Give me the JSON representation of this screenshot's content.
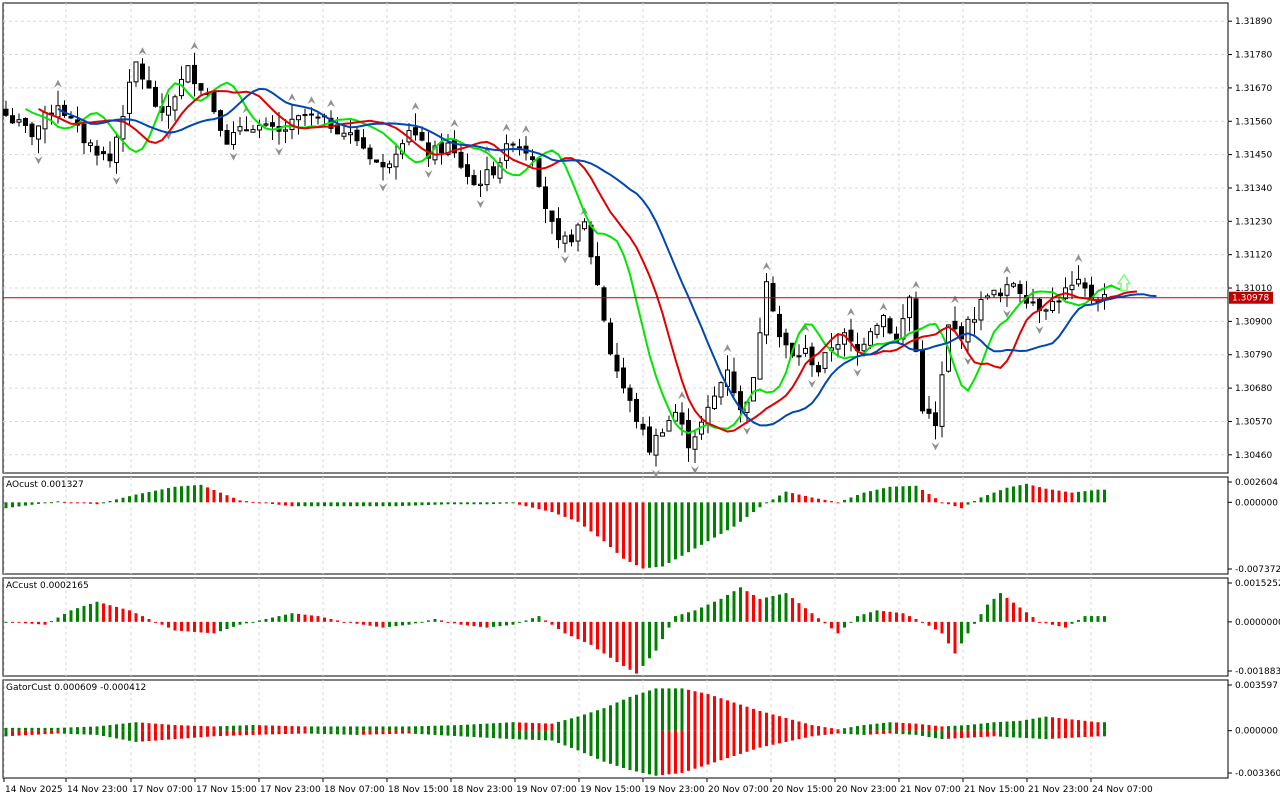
{
  "colors": {
    "bull": "#008000",
    "bear": "#ff0000",
    "candle": "#000000",
    "ma_fast": "#00e600",
    "ma_mid": "#e00000",
    "ma_slow": "#0047b3",
    "price_line": "#c00000",
    "arrow": "#7cfc7c",
    "grid": "#d8d8d8",
    "fractal": "#909090"
  },
  "chart_data": [
    {
      "type": "candlestick",
      "symbol_price_label": "1.30978",
      "ylim": [
        1.304,
        1.3195
      ],
      "y_ticks": [
        "1.31890",
        "1.31780",
        "1.31670",
        "1.31560",
        "1.31450",
        "1.31340",
        "1.31230",
        "1.31120",
        "1.31010",
        "1.30900",
        "1.30790",
        "1.30680",
        "1.30570",
        "1.30460"
      ],
      "x_ticks": [
        "14 Nov 2025",
        "14 Nov 23:00",
        "17 Nov 07:00",
        "17 Nov 15:00",
        "17 Nov 23:00",
        "18 Nov 07:00",
        "18 Nov 15:00",
        "18 Nov 23:00",
        "19 Nov 07:00",
        "19 Nov 15:00",
        "19 Nov 23:00",
        "20 Nov 07:00",
        "20 Nov 15:00",
        "20 Nov 23:00",
        "21 Nov 07:00",
        "21 Nov 15:00",
        "21 Nov 23:00",
        "24 Nov 07:00"
      ],
      "close_anchors": [
        [
          0,
          1.3158
        ],
        [
          4,
          1.3152
        ],
        [
          8,
          1.3162
        ],
        [
          12,
          1.315
        ],
        [
          16,
          1.3143
        ],
        [
          20,
          1.3175
        ],
        [
          24,
          1.3157
        ],
        [
          28,
          1.3173
        ],
        [
          31,
          1.3165
        ],
        [
          34,
          1.315
        ],
        [
          38,
          1.3155
        ],
        [
          42,
          1.3152
        ],
        [
          46,
          1.3158
        ],
        [
          50,
          1.3155
        ],
        [
          54,
          1.315
        ],
        [
          58,
          1.314
        ],
        [
          62,
          1.3154
        ],
        [
          65,
          1.3145
        ],
        [
          68,
          1.3148
        ],
        [
          72,
          1.3135
        ],
        [
          75,
          1.314
        ],
        [
          78,
          1.315
        ],
        [
          81,
          1.3145
        ],
        [
          83,
          1.3128
        ],
        [
          85,
          1.3115
        ],
        [
          87,
          1.3118
        ],
        [
          89,
          1.3122
        ],
        [
          91,
          1.3102
        ],
        [
          93,
          1.308
        ],
        [
          95,
          1.3068
        ],
        [
          97,
          1.3058
        ],
        [
          99,
          1.3048
        ],
        [
          101,
          1.3055
        ],
        [
          103,
          1.306
        ],
        [
          105,
          1.305
        ],
        [
          107,
          1.3056
        ],
        [
          109,
          1.3065
        ],
        [
          111,
          1.3075
        ],
        [
          113,
          1.306
        ],
        [
          115,
          1.307
        ],
        [
          117,
          1.3105
        ],
        [
          119,
          1.3085
        ],
        [
          121,
          1.3078
        ],
        [
          123,
          1.308
        ],
        [
          125,
          1.3074
        ],
        [
          127,
          1.3082
        ],
        [
          129,
          1.3085
        ],
        [
          131,
          1.308
        ],
        [
          133,
          1.3088
        ],
        [
          135,
          1.3092
        ],
        [
          137,
          1.3083
        ],
        [
          139,
          1.3098
        ],
        [
          141,
          1.3062
        ],
        [
          143,
          1.3055
        ],
        [
          145,
          1.3088
        ],
        [
          147,
          1.3086
        ],
        [
          149,
          1.3092
        ],
        [
          151,
          1.31
        ],
        [
          153,
          1.3098
        ],
        [
          155,
          1.3103
        ],
        [
          157,
          1.3098
        ],
        [
          159,
          1.3095
        ],
        [
          161,
          1.3096
        ],
        [
          163,
          1.31
        ],
        [
          165,
          1.3102
        ],
        [
          167,
          1.3098
        ]
      ],
      "series": [
        {
          "name": "",
          "color_key": "ma_fast"
        },
        {
          "name": "",
          "color_key": "ma_mid"
        },
        {
          "name": "",
          "color_key": "ma_slow"
        }
      ]
    },
    {
      "type": "bar",
      "label": "AOcust 0.001327",
      "ylim": [
        -0.007372,
        0.002604
      ],
      "y_ticks": [
        "0.002604",
        "0.000000",
        "-0.007372"
      ],
      "anchors": [
        [
          0,
          -0.0006
        ],
        [
          8,
          0.0001
        ],
        [
          14,
          -0.0002
        ],
        [
          20,
          0.0008
        ],
        [
          26,
          0.0016
        ],
        [
          30,
          0.0018
        ],
        [
          36,
          0.0002
        ],
        [
          44,
          -0.0004
        ],
        [
          52,
          -0.0004
        ],
        [
          60,
          -0.0004
        ],
        [
          68,
          -0.0002
        ],
        [
          74,
          -0.0002
        ],
        [
          78,
          -0.0001
        ],
        [
          84,
          -0.001
        ],
        [
          88,
          -0.002
        ],
        [
          92,
          -0.004
        ],
        [
          95,
          -0.0058
        ],
        [
          98,
          -0.0068
        ],
        [
          101,
          -0.0066
        ],
        [
          104,
          -0.0055
        ],
        [
          108,
          -0.004
        ],
        [
          112,
          -0.0025
        ],
        [
          116,
          -0.0005
        ],
        [
          120,
          0.0011
        ],
        [
          124,
          0.0005
        ],
        [
          128,
          0.0
        ],
        [
          132,
          0.001
        ],
        [
          136,
          0.0016
        ],
        [
          140,
          0.0017
        ],
        [
          144,
          0.0
        ],
        [
          147,
          -0.0006
        ],
        [
          150,
          0.0005
        ],
        [
          154,
          0.0015
        ],
        [
          157,
          0.0019
        ],
        [
          160,
          0.0014
        ],
        [
          164,
          0.001
        ],
        [
          168,
          0.0013
        ]
      ]
    },
    {
      "type": "bar",
      "label": "ACcust 0.0002165",
      "ylim": [
        -0.0018835,
        0.0015252
      ],
      "y_ticks": [
        "0.0015252",
        "0.0000000",
        "-0.0018835"
      ],
      "anchors": [
        [
          0,
          0.0
        ],
        [
          6,
          -0.0001
        ],
        [
          10,
          0.0004
        ],
        [
          14,
          0.0007
        ],
        [
          19,
          0.0004
        ],
        [
          22,
          0.0001
        ],
        [
          26,
          -0.0003
        ],
        [
          32,
          -0.0004
        ],
        [
          36,
          -0.0001
        ],
        [
          40,
          0.0001
        ],
        [
          44,
          0.0003
        ],
        [
          48,
          0.0002
        ],
        [
          52,
          0.0
        ],
        [
          58,
          -0.0002
        ],
        [
          62,
          -0.0001
        ],
        [
          66,
          0.0001
        ],
        [
          70,
          -0.0001
        ],
        [
          74,
          -0.0002
        ],
        [
          78,
          -0.0001
        ],
        [
          82,
          0.0002
        ],
        [
          86,
          -0.0004
        ],
        [
          90,
          -0.0008
        ],
        [
          94,
          -0.0014
        ],
        [
          97,
          -0.0018
        ],
        [
          100,
          -0.001
        ],
        [
          103,
          0.0002
        ],
        [
          106,
          0.0004
        ],
        [
          110,
          0.0008
        ],
        [
          113,
          0.0012
        ],
        [
          116,
          0.0008
        ],
        [
          120,
          0.001
        ],
        [
          124,
          0.0003
        ],
        [
          128,
          -0.0004
        ],
        [
          131,
          0.0002
        ],
        [
          134,
          0.0004
        ],
        [
          138,
          0.0003
        ],
        [
          141,
          0.0
        ],
        [
          144,
          -0.0004
        ],
        [
          146,
          -0.0011
        ],
        [
          148,
          -0.0004
        ],
        [
          151,
          0.0006
        ],
        [
          153,
          0.001
        ],
        [
          156,
          0.0005
        ],
        [
          159,
          0.0
        ],
        [
          163,
          -0.0002
        ],
        [
          166,
          0.0002
        ],
        [
          168,
          0.0002
        ]
      ]
    },
    {
      "type": "bar",
      "label": "GatorCust 0.000609 -0.000412",
      "ylim": [
        -0.00336,
        0.003597
      ],
      "y_ticks": [
        "0.003597",
        "0.000000",
        "-0.003360"
      ],
      "upper_anchors": [
        [
          0,
          0.0002
        ],
        [
          8,
          0.0002
        ],
        [
          14,
          0.0003
        ],
        [
          20,
          0.0006
        ],
        [
          26,
          0.0004
        ],
        [
          32,
          0.0003
        ],
        [
          38,
          0.0004
        ],
        [
          46,
          0.0003
        ],
        [
          54,
          0.0003
        ],
        [
          62,
          0.0003
        ],
        [
          70,
          0.0004
        ],
        [
          78,
          0.0006
        ],
        [
          84,
          0.0005
        ],
        [
          88,
          0.001
        ],
        [
          92,
          0.0016
        ],
        [
          96,
          0.0024
        ],
        [
          100,
          0.003
        ],
        [
          104,
          0.003
        ],
        [
          108,
          0.0026
        ],
        [
          112,
          0.002
        ],
        [
          116,
          0.0014
        ],
        [
          120,
          0.0009
        ],
        [
          124,
          0.0004
        ],
        [
          128,
          0.0001
        ],
        [
          132,
          0.0004
        ],
        [
          136,
          0.0006
        ],
        [
          140,
          0.0005
        ],
        [
          144,
          0.0003
        ],
        [
          148,
          0.0004
        ],
        [
          152,
          0.0006
        ],
        [
          156,
          0.0007
        ],
        [
          160,
          0.001
        ],
        [
          164,
          0.0008
        ],
        [
          168,
          0.0006
        ]
      ],
      "lower_anchors": [
        [
          0,
          -0.0004
        ],
        [
          8,
          -0.0002
        ],
        [
          14,
          -0.0003
        ],
        [
          20,
          -0.0008
        ],
        [
          26,
          -0.0006
        ],
        [
          32,
          -0.0004
        ],
        [
          38,
          -0.0003
        ],
        [
          46,
          -0.0002
        ],
        [
          54,
          -0.0003
        ],
        [
          62,
          -0.0002
        ],
        [
          70,
          -0.0004
        ],
        [
          78,
          -0.0006
        ],
        [
          84,
          -0.0007
        ],
        [
          88,
          -0.0014
        ],
        [
          92,
          -0.0022
        ],
        [
          96,
          -0.0028
        ],
        [
          100,
          -0.0032
        ],
        [
          104,
          -0.003
        ],
        [
          108,
          -0.0024
        ],
        [
          112,
          -0.0018
        ],
        [
          116,
          -0.0012
        ],
        [
          120,
          -0.0008
        ],
        [
          124,
          -0.0004
        ],
        [
          128,
          -0.0002
        ],
        [
          132,
          -0.0003
        ],
        [
          136,
          -0.0002
        ],
        [
          140,
          -0.0003
        ],
        [
          144,
          -0.0006
        ],
        [
          148,
          -0.0005
        ],
        [
          152,
          -0.0004
        ],
        [
          156,
          -0.0005
        ],
        [
          160,
          -0.0006
        ],
        [
          164,
          -0.0005
        ],
        [
          168,
          -0.0004
        ]
      ]
    }
  ]
}
